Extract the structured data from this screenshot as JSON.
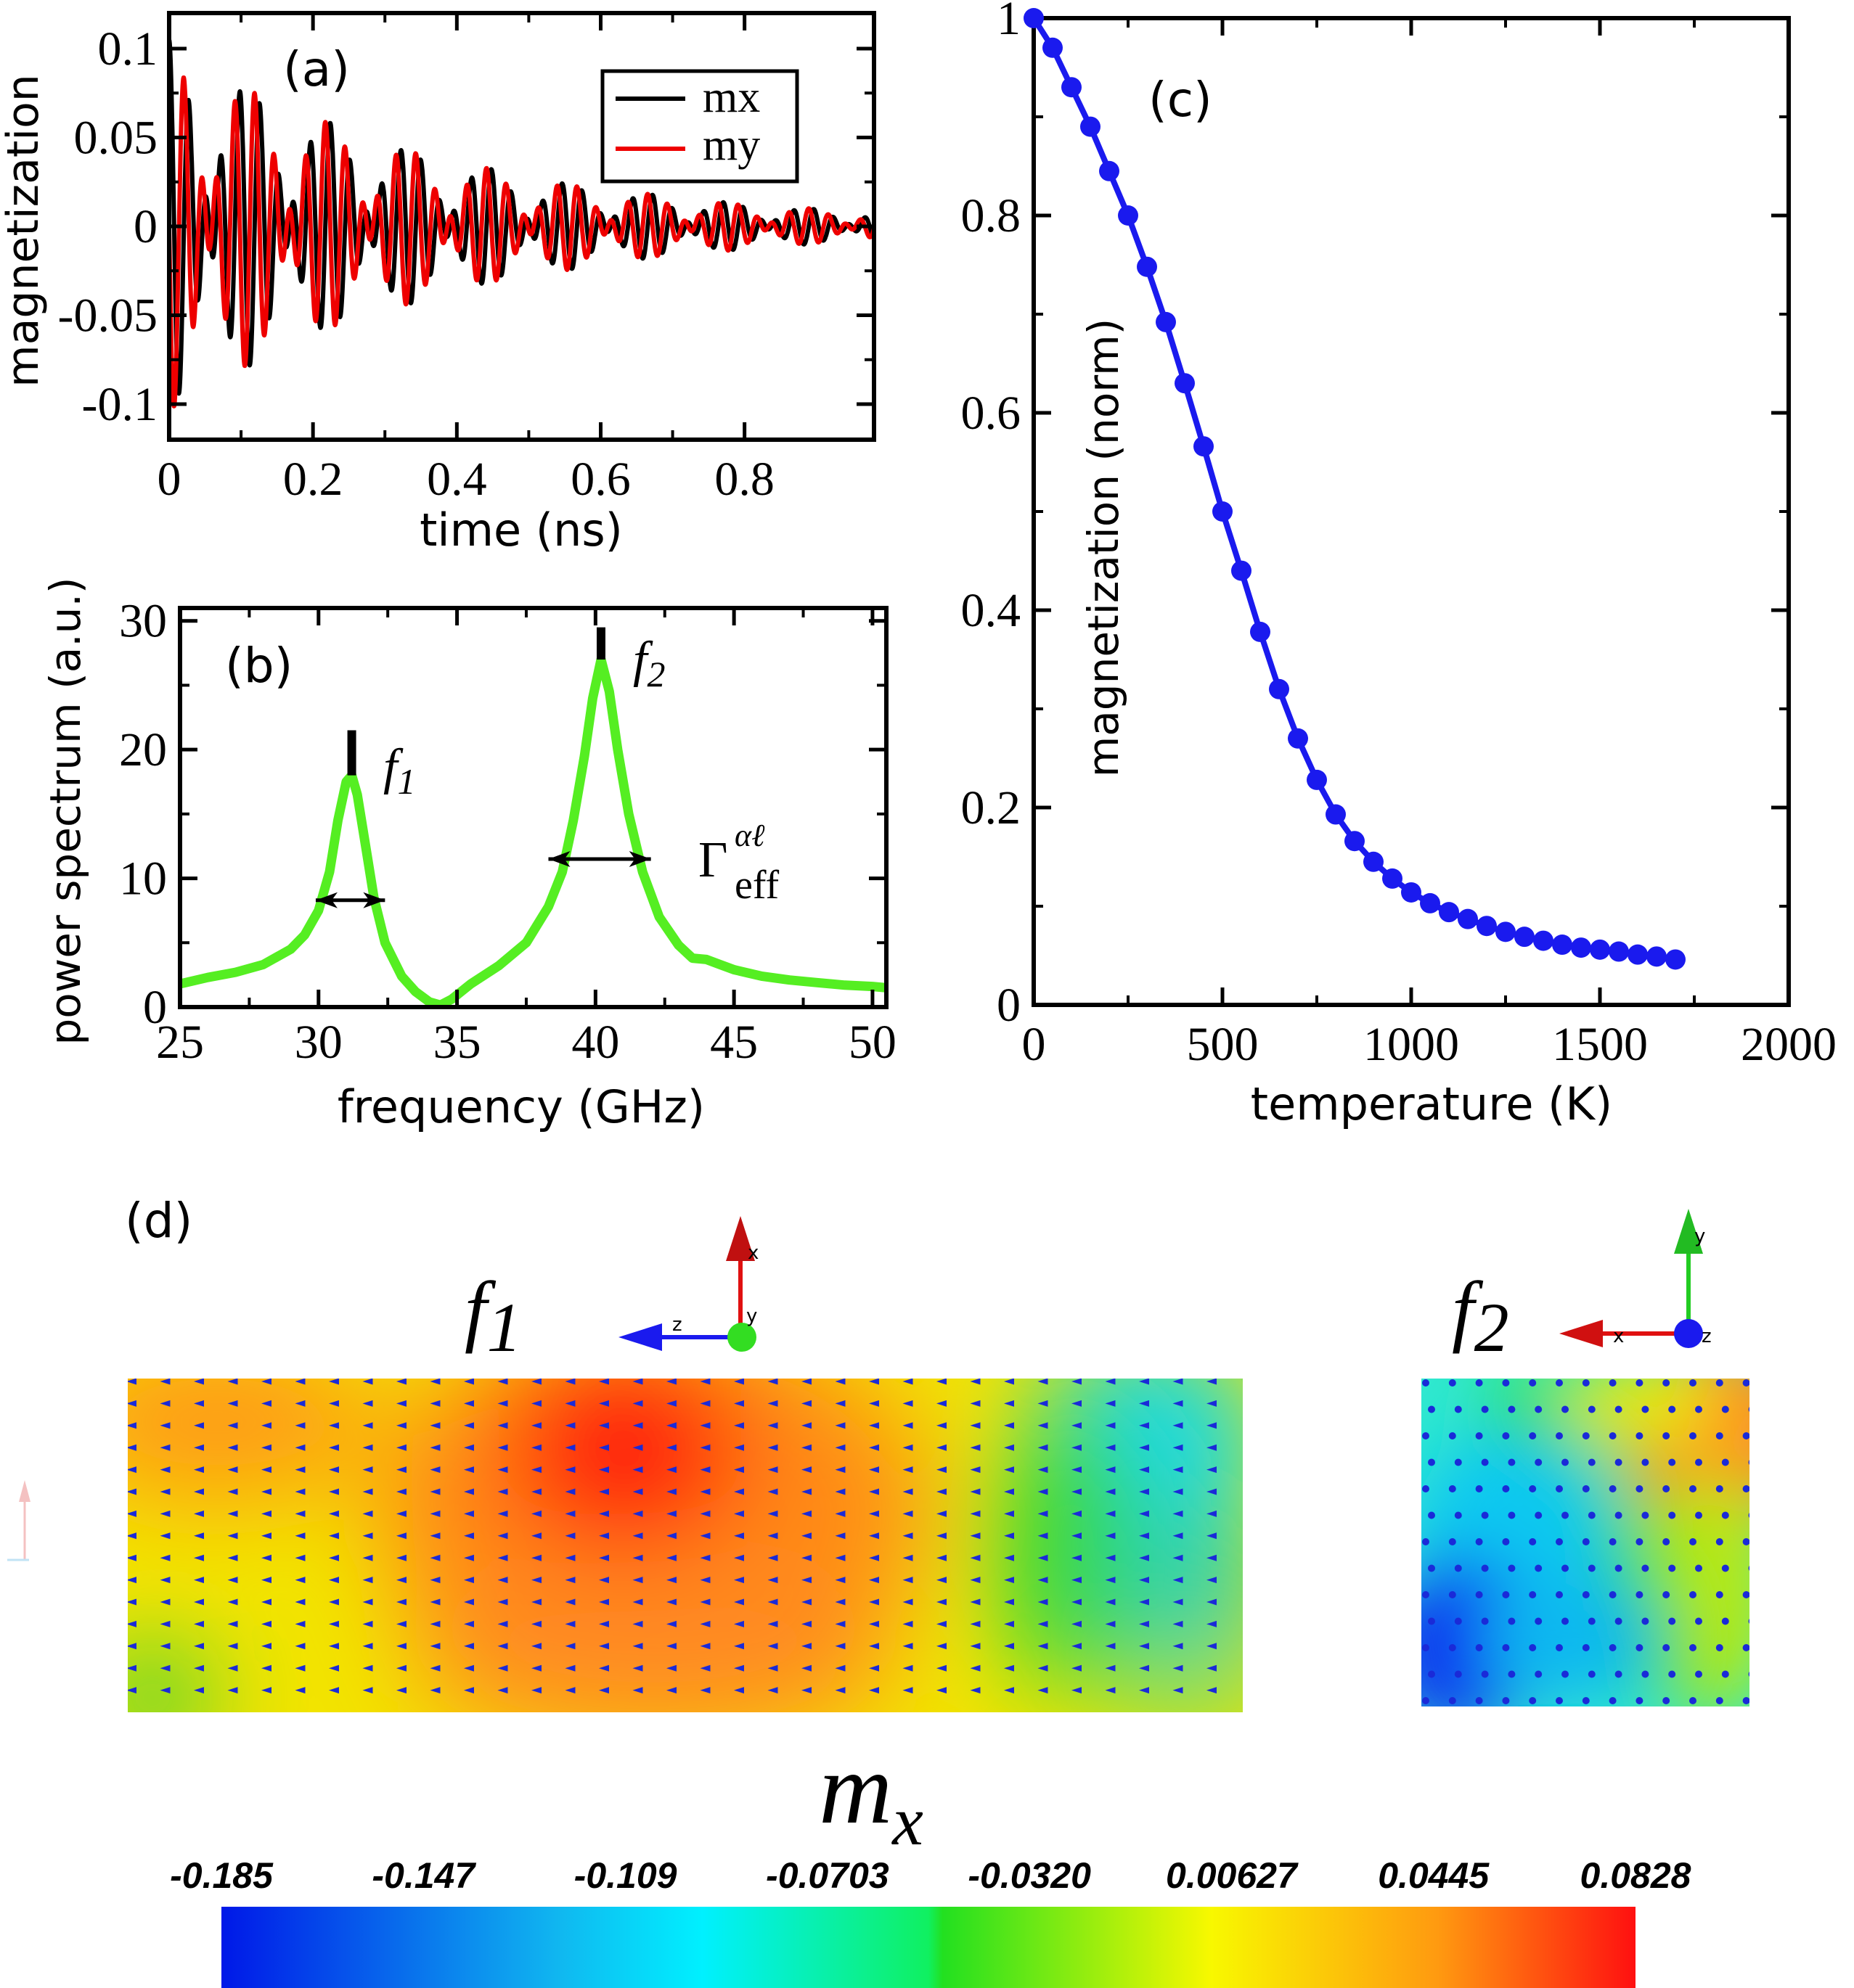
{
  "chart_data": [
    {
      "panel": "(a)",
      "type": "line",
      "xlabel": "time (ns)",
      "ylabel": "magnetization",
      "xlim": [
        0,
        0.98
      ],
      "ylim": [
        -0.12,
        0.12
      ],
      "xticks": [
        0,
        0.2,
        0.4,
        0.6,
        0.8
      ],
      "xtick_labels": [
        "0",
        "0.2",
        "0.4",
        "0.6",
        "0.8"
      ],
      "yticks": [
        -0.1,
        -0.05,
        0,
        0.05,
        0.1
      ],
      "ytick_labels": [
        "-0.1",
        "-0.05",
        "0",
        "0.05",
        "0.1"
      ],
      "legend_position": "top-right",
      "series": [
        {
          "name": "mx",
          "color": "#000000",
          "f1_GHz": 31.2,
          "f2_GHz": 40.2,
          "amp1": 0.045,
          "amp2": 0.06,
          "decay_ns": 0.38,
          "phase": 0.0
        },
        {
          "name": "my",
          "color": "#ee0000",
          "f1_GHz": 31.2,
          "f2_GHz": 40.2,
          "amp1": 0.045,
          "amp2": 0.06,
          "decay_ns": 0.38,
          "phase": 1.5708
        }
      ]
    },
    {
      "panel": "(b)",
      "type": "line",
      "xlabel": "frequency (GHz)",
      "ylabel": "power spectrum (a.u.)",
      "xlim": [
        25,
        50.5
      ],
      "ylim": [
        0,
        31
      ],
      "xticks": [
        25,
        30,
        35,
        40,
        45,
        50
      ],
      "xtick_labels": [
        "25",
        "30",
        "35",
        "40",
        "45",
        "50"
      ],
      "yticks": [
        0,
        10,
        20,
        30
      ],
      "ytick_labels": [
        "0",
        "10",
        "20",
        "30"
      ],
      "series": [
        {
          "name": "power spectrum",
          "color": "#55ee22",
          "x": [
            25,
            26,
            27,
            28,
            29,
            29.5,
            30,
            30.4,
            30.7,
            31,
            31.2,
            31.4,
            31.7,
            32,
            32.4,
            33,
            33.5,
            34,
            34.4,
            34.8,
            35.5,
            36.5,
            37.5,
            38.3,
            38.8,
            39.2,
            39.6,
            39.9,
            40.2,
            40.5,
            40.8,
            41.2,
            41.7,
            42.3,
            43,
            43.5,
            44,
            44.5,
            45,
            46,
            47,
            48,
            49,
            50,
            50.5
          ],
          "y": [
            1.8,
            2.3,
            2.7,
            3.3,
            4.5,
            5.6,
            7.5,
            10.5,
            14.5,
            17.5,
            18.0,
            16.5,
            12.5,
            8.5,
            5.0,
            2.4,
            1.2,
            0.4,
            0.15,
            0.6,
            1.8,
            3.2,
            5.0,
            7.8,
            10.5,
            14.5,
            19.5,
            24.0,
            27.0,
            24.5,
            20.0,
            15.0,
            10.5,
            7.0,
            4.8,
            3.8,
            3.7,
            3.3,
            2.9,
            2.4,
            2.1,
            1.9,
            1.7,
            1.6,
            1.5
          ]
        }
      ],
      "peak_markers": [
        {
          "x": 31.2,
          "y_from": 18.0,
          "y_to": 21.5,
          "label": "f",
          "subscript": "1"
        },
        {
          "x": 40.2,
          "y_from": 27.0,
          "y_to": 29.5,
          "label": "f",
          "subscript": "2"
        }
      ],
      "width_markers": [
        {
          "x_from": 29.9,
          "x_to": 32.4,
          "y": 8.3
        },
        {
          "x_from": 38.3,
          "x_to": 42.0,
          "y": 11.5
        }
      ],
      "gamma_label": {
        "base": "Γ",
        "sup": "αℓ",
        "sub": "eff"
      }
    },
    {
      "panel": "(c)",
      "type": "scatter",
      "xlabel": "temperature (K)",
      "ylabel": "magnetization (norm)",
      "xlim": [
        0,
        2000
      ],
      "ylim": [
        0,
        1
      ],
      "xticks": [
        0,
        500,
        1000,
        1500,
        2000
      ],
      "xtick_labels": [
        "0",
        "500",
        "1000",
        "1500",
        "2000"
      ],
      "yticks": [
        0,
        0.2,
        0.4,
        0.6,
        0.8,
        1
      ],
      "ytick_labels": [
        "0",
        "0.2",
        "0.4",
        "0.6",
        "0.8",
        "1"
      ],
      "series": [
        {
          "name": "magnetization",
          "color": "#1a1aee",
          "x": [
            0,
            50,
            100,
            150,
            200,
            250,
            300,
            350,
            400,
            450,
            500,
            550,
            600,
            650,
            700,
            750,
            800,
            850,
            900,
            950,
            1000,
            1050,
            1100,
            1150,
            1200,
            1250,
            1300,
            1350,
            1400,
            1450,
            1500,
            1550,
            1600,
            1650,
            1700
          ],
          "y": [
            1.0,
            0.97,
            0.93,
            0.89,
            0.845,
            0.8,
            0.748,
            0.692,
            0.63,
            0.566,
            0.5,
            0.44,
            0.378,
            0.32,
            0.27,
            0.228,
            0.193,
            0.166,
            0.145,
            0.128,
            0.114,
            0.103,
            0.094,
            0.087,
            0.08,
            0.074,
            0.069,
            0.065,
            0.061,
            0.058,
            0.056,
            0.054,
            0.051,
            0.049,
            0.046
          ]
        }
      ]
    },
    {
      "panel": "(d)",
      "type": "heatmap",
      "quantity": "m",
      "quantity_subscript": "x",
      "colorbar_ticks": [
        "-0.185",
        "-0.147",
        "-0.109",
        "-0.0703",
        "-0.0320",
        "0.00627",
        "0.0445",
        "0.0828"
      ],
      "colorbar_range": [
        -0.185,
        0.0828
      ],
      "maps": [
        {
          "label": "f",
          "subscript": "1",
          "axes": {
            "horizontal": "z",
            "vertical": "x",
            "normal": "y"
          }
        },
        {
          "label": "f",
          "subscript": "2",
          "axes": {
            "horizontal": "x",
            "vertical": "y",
            "normal": "z"
          }
        }
      ]
    }
  ],
  "colors": {
    "frame": "#000000",
    "red_line": "#ee0000",
    "green_line": "#55ee22",
    "blue_line": "#1a1aee",
    "arrow": "#1a1aee"
  }
}
